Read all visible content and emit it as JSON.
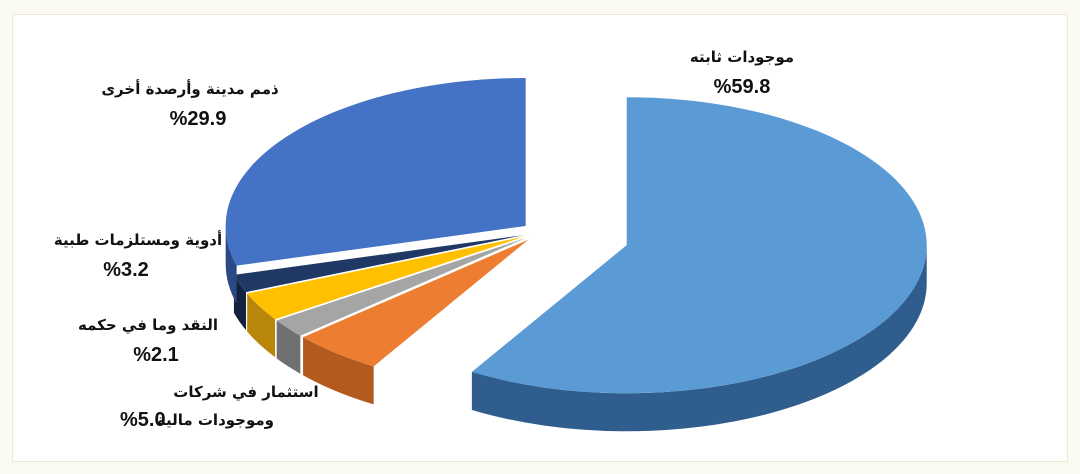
{
  "chart_data": {
    "type": "pie",
    "style": "3d-exploded",
    "slices": [
      {
        "label": "موجودات ثابته",
        "value": 59.8,
        "value_text": "%59.8",
        "color": "#5b9bd5",
        "side": "#2f5d8e",
        "exploded": true
      },
      {
        "label": "استثمار في شركات وموجودات مالية",
        "label_lines": [
          "استثمار في شركات",
          "وموجودات مالية"
        ],
        "value": 5.0,
        "value_text": "%5.0",
        "color": "#ed7d31",
        "side": "#b35a1f"
      },
      {
        "label": "النقد وما في حكمه",
        "value": 2.1,
        "value_text": "%2.1",
        "color": "#a5a5a5",
        "side": "#707070"
      },
      {
        "label": "أدوية ومستلزمات طبية",
        "value": 3.2,
        "value_text": "%3.2",
        "color": "#ffc000",
        "side": "#b8860b"
      },
      {
        "label": "",
        "value": 2.0,
        "value_text": "",
        "color": "#1f3864",
        "side": "#13233f"
      },
      {
        "label": "ذمم مدينة وأرصدة أخرى",
        "value": 29.9,
        "value_text": "%29.9",
        "color": "#4472c4",
        "side": "#2a4a85"
      }
    ]
  }
}
